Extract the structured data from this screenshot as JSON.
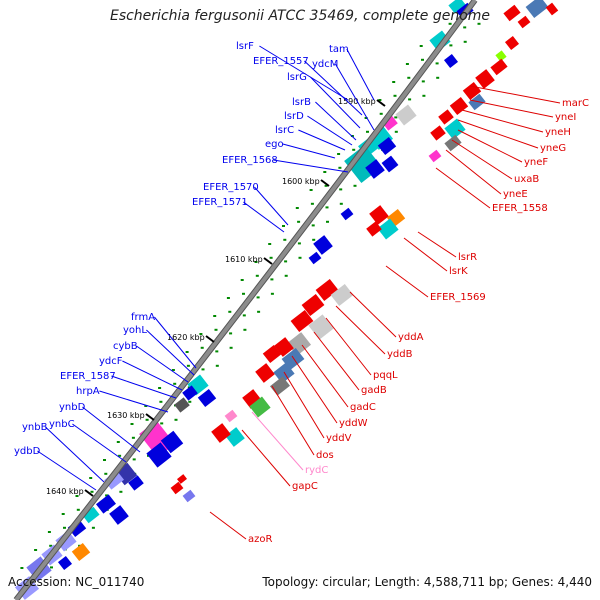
{
  "title": "Escherichia fergusonii ATCC 35469, complete genome",
  "accession_text": "Accession: NC_011740",
  "topology_text": "Topology: circular; Length: 4,588,711 bp; Genes: 4,440",
  "colors": {
    "backbone": "#8c8c8c",
    "left_label": "#0000ee",
    "right_label": "#dd0000",
    "rna_label": "#ff88cc",
    "left_gene": "#0000dd",
    "right_gene": "#ee0000",
    "tick_dot": "#008800"
  },
  "ticks": [
    {
      "label": "1590 kbp"
    },
    {
      "label": "1600 kbp"
    },
    {
      "label": "1610 kbp"
    },
    {
      "label": "1620 kbp"
    },
    {
      "label": "1630 kbp"
    },
    {
      "label": "1640 kbp"
    }
  ],
  "left_labels": [
    {
      "text": "lsrF"
    },
    {
      "text": "tam"
    },
    {
      "text": "EFER_1557"
    },
    {
      "text": "ydcM"
    },
    {
      "text": "lsrG"
    },
    {
      "text": "lsrB"
    },
    {
      "text": "lsrD"
    },
    {
      "text": "lsrC"
    },
    {
      "text": "ego"
    },
    {
      "text": "EFER_1568"
    },
    {
      "text": "EFER_1570"
    },
    {
      "text": "EFER_1571"
    },
    {
      "text": "frmA"
    },
    {
      "text": "yohL"
    },
    {
      "text": "cybB"
    },
    {
      "text": "ydcF"
    },
    {
      "text": "EFER_1587"
    },
    {
      "text": "hrpA"
    },
    {
      "text": "ynbD"
    },
    {
      "text": "ynbC"
    },
    {
      "text": "ynbB"
    },
    {
      "text": "ydbD"
    }
  ],
  "right_labels": [
    {
      "text": "marC"
    },
    {
      "text": "yneI"
    },
    {
      "text": "yneH"
    },
    {
      "text": "yneG"
    },
    {
      "text": "yneF"
    },
    {
      "text": "uxaB"
    },
    {
      "text": "yneE"
    },
    {
      "text": "EFER_1558"
    },
    {
      "text": "lsrR"
    },
    {
      "text": "lsrK"
    },
    {
      "text": "EFER_1569"
    },
    {
      "text": "yddA"
    },
    {
      "text": "yddB"
    },
    {
      "text": "pqqL"
    },
    {
      "text": "gadB"
    },
    {
      "text": "gadC"
    },
    {
      "text": "yddW"
    },
    {
      "text": "yddV"
    },
    {
      "text": "dos"
    },
    {
      "text": "rydC"
    },
    {
      "text": "gapC"
    },
    {
      "text": "azoR"
    }
  ]
}
